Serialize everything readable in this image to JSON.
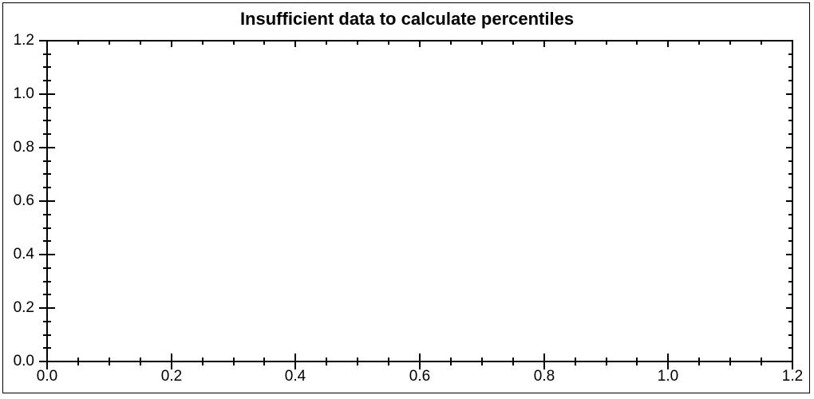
{
  "chart_data": {
    "type": "scatter",
    "title": "Insufficient data to calculate percentiles",
    "series": [],
    "xlabel": "",
    "ylabel": "",
    "xlim": [
      0.0,
      1.2
    ],
    "ylim": [
      0.0,
      1.2
    ],
    "x_ticks": {
      "values": [
        0.0,
        0.2,
        0.4,
        0.6,
        0.8,
        1.0,
        1.2
      ],
      "labels": [
        "0.0",
        "0.2",
        "0.4",
        "0.6",
        "0.8",
        "1.0",
        "1.2"
      ]
    },
    "y_ticks": {
      "values": [
        0.0,
        0.2,
        0.4,
        0.6,
        0.8,
        1.0,
        1.2
      ],
      "labels": [
        "0.0",
        "0.2",
        "0.4",
        "0.6",
        "0.8",
        "1.0",
        "1.2"
      ]
    },
    "minor_tick_step": 0.05,
    "grid": false,
    "frame": true,
    "legend_position": "none",
    "colors": {
      "foreground": "#000000",
      "background": "#ffffff"
    }
  }
}
